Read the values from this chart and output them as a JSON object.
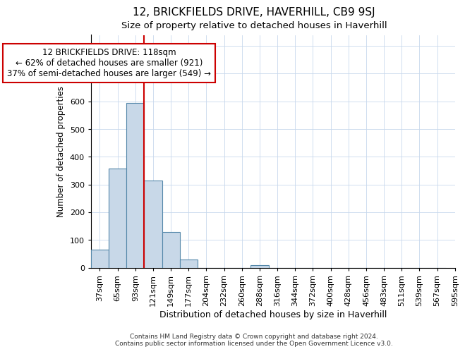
{
  "title": "12, BRICKFIELDS DRIVE, HAVERHILL, CB9 9SJ",
  "subtitle": "Size of property relative to detached houses in Haverhill",
  "xlabel": "Distribution of detached houses by size in Haverhill",
  "ylabel": "Number of detached properties",
  "footer_line1": "Contains HM Land Registry data © Crown copyright and database right 2024.",
  "footer_line2": "Contains public sector information licensed under the Open Government Licence v3.0.",
  "bin_labels": [
    "37sqm",
    "65sqm",
    "93sqm",
    "121sqm",
    "149sqm",
    "177sqm",
    "204sqm",
    "232sqm",
    "260sqm",
    "288sqm",
    "316sqm",
    "344sqm",
    "372sqm",
    "400sqm",
    "428sqm",
    "456sqm",
    "483sqm",
    "511sqm",
    "539sqm",
    "567sqm",
    "595sqm"
  ],
  "bar_values": [
    65,
    358,
    595,
    315,
    128,
    30,
    0,
    0,
    0,
    10,
    0,
    0,
    0,
    0,
    0,
    0,
    0,
    0,
    0,
    0
  ],
  "bar_color": "#c8d8e8",
  "bar_edge_color": "#5588aa",
  "grid_color": "#c8d8ec",
  "property_line_x": 3.0,
  "annotation_text_line1": "12 BRICKFIELDS DRIVE: 118sqm",
  "annotation_text_line2": "← 62% of detached houses are smaller (921)",
  "annotation_text_line3": "37% of semi-detached houses are larger (549) →",
  "annotation_box_color": "#ffffff",
  "annotation_box_edge": "#cc0000",
  "vline_color": "#cc0000",
  "ylim": [
    0,
    840
  ],
  "yticks": [
    0,
    100,
    200,
    300,
    400,
    500,
    600,
    700,
    800
  ],
  "title_fontsize": 11,
  "subtitle_fontsize": 9.5,
  "annotation_fontsize": 8.5,
  "axis_fontsize": 8,
  "xlabel_fontsize": 9,
  "ylabel_fontsize": 8.5,
  "footer_fontsize": 6.5
}
